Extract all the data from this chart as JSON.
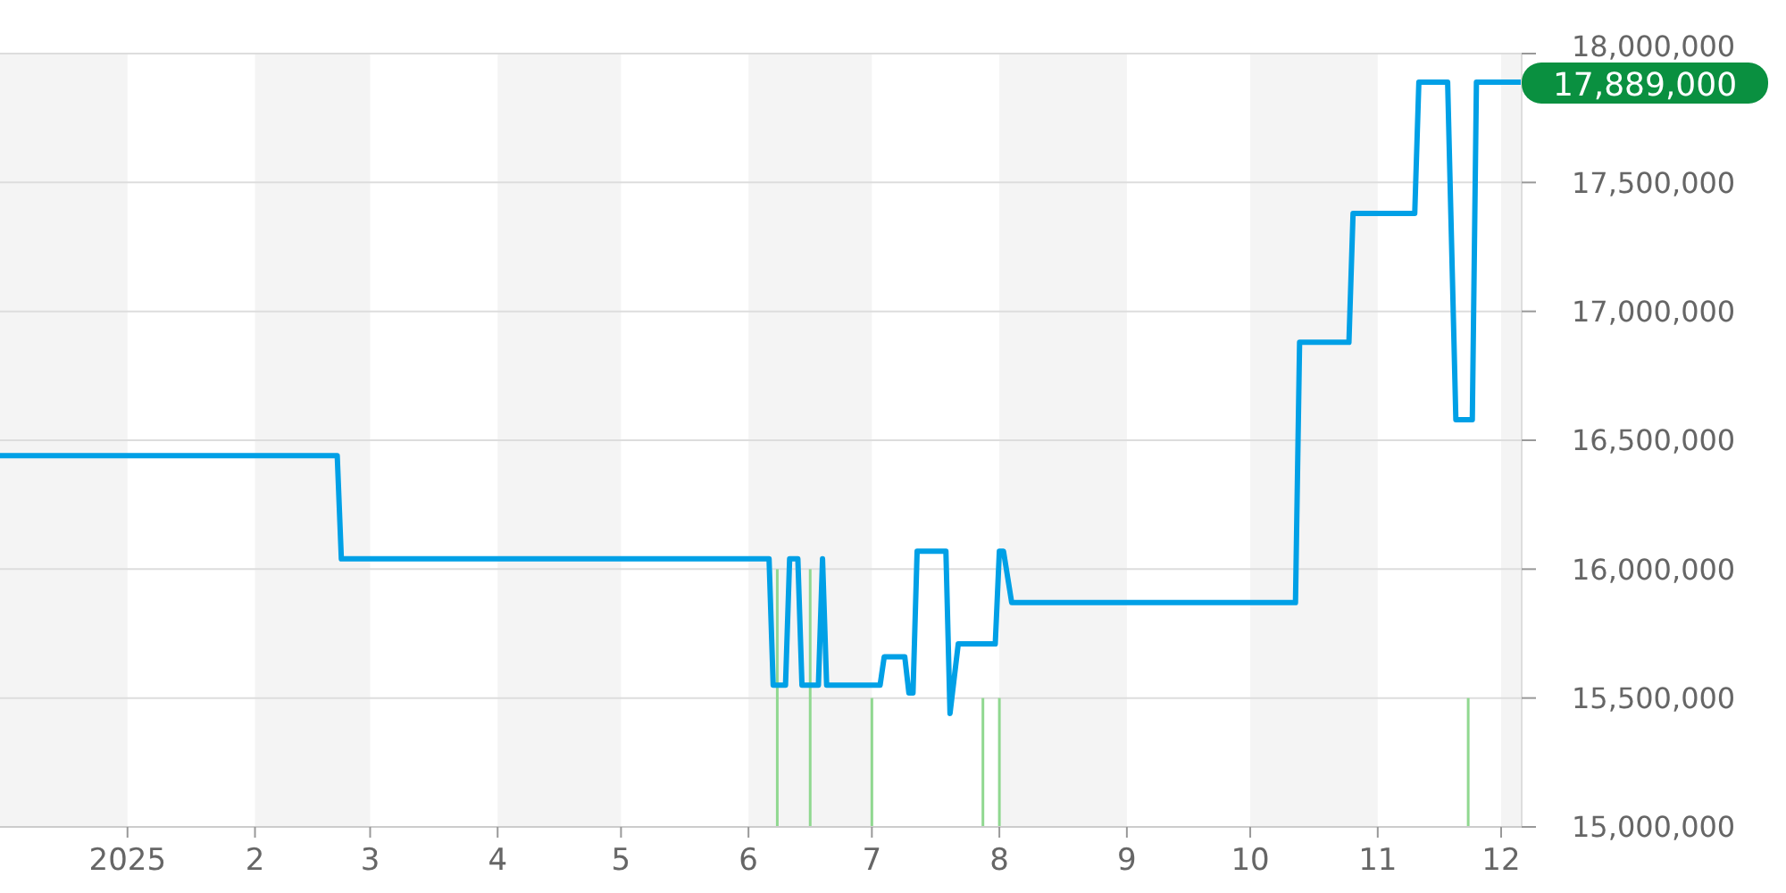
{
  "chart_data": {
    "type": "line",
    "xlim": [
      "2024-12-01",
      "2025-12-06"
    ],
    "ylim": [
      15000000,
      18000000
    ],
    "xticks": [
      {
        "value": "2025-01-01",
        "label": "2025"
      },
      {
        "value": "2025-02-01",
        "label": "2"
      },
      {
        "value": "2025-03-01",
        "label": "3"
      },
      {
        "value": "2025-04-01",
        "label": "4"
      },
      {
        "value": "2025-05-01",
        "label": "5"
      },
      {
        "value": "2025-06-01",
        "label": "6"
      },
      {
        "value": "2025-07-01",
        "label": "7"
      },
      {
        "value": "2025-08-01",
        "label": "8"
      },
      {
        "value": "2025-09-01",
        "label": "9"
      },
      {
        "value": "2025-10-01",
        "label": "10"
      },
      {
        "value": "2025-11-01",
        "label": "11"
      },
      {
        "value": "2025-12-01",
        "label": "12"
      }
    ],
    "yticks": [
      {
        "value": 15000000,
        "label": "15,000,000"
      },
      {
        "value": 15500000,
        "label": "15,500,000"
      },
      {
        "value": 16000000,
        "label": "16,000,000"
      },
      {
        "value": 16500000,
        "label": "16,500,000"
      },
      {
        "value": 17000000,
        "label": "17,000,000"
      },
      {
        "value": 17500000,
        "label": "17,500,000"
      },
      {
        "value": 18000000,
        "label": "18,000,000"
      }
    ],
    "grid": "y",
    "bands": [
      {
        "axis": "x",
        "from": "2024-12-01",
        "to": "2025-01-01",
        "color": "#f4f4f4"
      },
      {
        "axis": "x",
        "from": "2025-02-01",
        "to": "2025-03-01",
        "color": "#f4f4f4"
      },
      {
        "axis": "x",
        "from": "2025-04-01",
        "to": "2025-05-01",
        "color": "#f4f4f4"
      },
      {
        "axis": "x",
        "from": "2025-06-01",
        "to": "2025-07-01",
        "color": "#f4f4f4"
      },
      {
        "axis": "x",
        "from": "2025-08-01",
        "to": "2025-09-01",
        "color": "#f4f4f4"
      },
      {
        "axis": "x",
        "from": "2025-10-01",
        "to": "2025-11-01",
        "color": "#f4f4f4"
      },
      {
        "axis": "x",
        "from": "2025-12-01",
        "to": "2025-12-06",
        "color": "#f4f4f4"
      }
    ],
    "series": [
      {
        "type": "bar",
        "color": "#90d890",
        "x": [
          "2025-06-08",
          "2025-06-16",
          "2025-07-01",
          "2025-07-28",
          "2025-08-01",
          "2025-11-23"
        ],
        "values": [
          16000000,
          16000000,
          15500000,
          15500000,
          15500000,
          15500000
        ]
      },
      {
        "color": "#00a0e6",
        "x": [
          "2024-12-01",
          "2025-02-21",
          "2025-02-22",
          "2025-06-06",
          "2025-06-07",
          "2025-06-10",
          "2025-06-11",
          "2025-06-13",
          "2025-06-14",
          "2025-06-18",
          "2025-06-19",
          "2025-06-20",
          "2025-07-03",
          "2025-07-04",
          "2025-07-09",
          "2025-07-10",
          "2025-07-11",
          "2025-07-12",
          "2025-07-19",
          "2025-07-20",
          "2025-07-22",
          "2025-07-31",
          "2025-08-01",
          "2025-08-02",
          "2025-08-04",
          "2025-10-12",
          "2025-10-13",
          "2025-10-25",
          "2025-10-26",
          "2025-11-10",
          "2025-11-11",
          "2025-11-18",
          "2025-11-20",
          "2025-11-24",
          "2025-11-25",
          "2025-12-06"
        ],
        "values": [
          16440000,
          16440000,
          16040000,
          16040000,
          15550000,
          15550000,
          16040000,
          16040000,
          15550000,
          15550000,
          16040000,
          15550000,
          15550000,
          15660000,
          15660000,
          15520000,
          15520000,
          16070000,
          16070000,
          15440000,
          15710000,
          15710000,
          16070000,
          16070000,
          15870000,
          15870000,
          16880000,
          16880000,
          17380000,
          17380000,
          17889000,
          17889000,
          16580000,
          16580000,
          17889000,
          17889000
        ]
      }
    ],
    "annotations": [
      {
        "text": "17,889,000",
        "x": "2025-12-06",
        "y": 17889000
      }
    ]
  }
}
